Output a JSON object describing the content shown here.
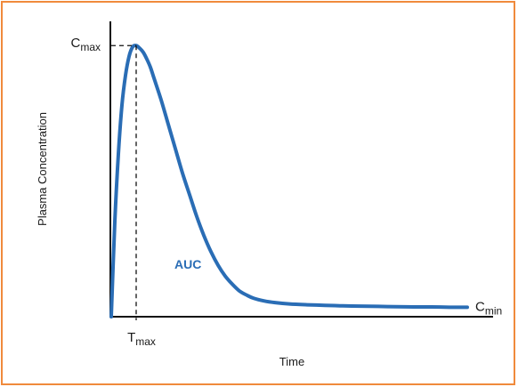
{
  "chart_data": {
    "type": "line",
    "xlabel": "Time",
    "ylabel": "Plasma Concentration",
    "grid": false,
    "legend": "none",
    "colors": {
      "frame": "#f08a3c",
      "curve": "#2a6db5",
      "axis": "#111111"
    },
    "markers": {
      "cmax": {
        "main": "C",
        "sub": "max"
      },
      "tmax": {
        "main": "T",
        "sub": "max"
      },
      "cmin": {
        "main": "C",
        "sub": "min"
      },
      "auc": "AUC"
    },
    "xlim": [
      0,
      10
    ],
    "ylim": [
      0,
      1.05
    ],
    "series": [
      {
        "x": [
          0,
          0.1,
          0.2,
          0.3,
          0.4,
          0.5,
          0.6,
          0.7,
          0.8,
          0.9,
          1.0,
          1.1,
          1.2,
          1.4,
          1.6,
          1.8,
          2.0,
          2.2,
          2.4,
          2.6,
          2.8,
          3.0,
          3.2,
          3.4,
          3.6,
          3.8,
          4.0,
          4.3,
          4.6,
          5.0,
          5.5,
          6.0,
          6.5,
          7.0,
          7.5,
          8.0,
          8.5,
          9.0,
          9.5,
          10.0
        ],
        "y": [
          0.0,
          0.35,
          0.6,
          0.78,
          0.89,
          0.96,
          0.995,
          1.0,
          0.99,
          0.975,
          0.95,
          0.92,
          0.88,
          0.8,
          0.71,
          0.62,
          0.53,
          0.45,
          0.37,
          0.3,
          0.24,
          0.19,
          0.15,
          0.12,
          0.095,
          0.08,
          0.068,
          0.058,
          0.052,
          0.047,
          0.044,
          0.042,
          0.04,
          0.039,
          0.038,
          0.037,
          0.036,
          0.036,
          0.035,
          0.035
        ]
      }
    ]
  }
}
